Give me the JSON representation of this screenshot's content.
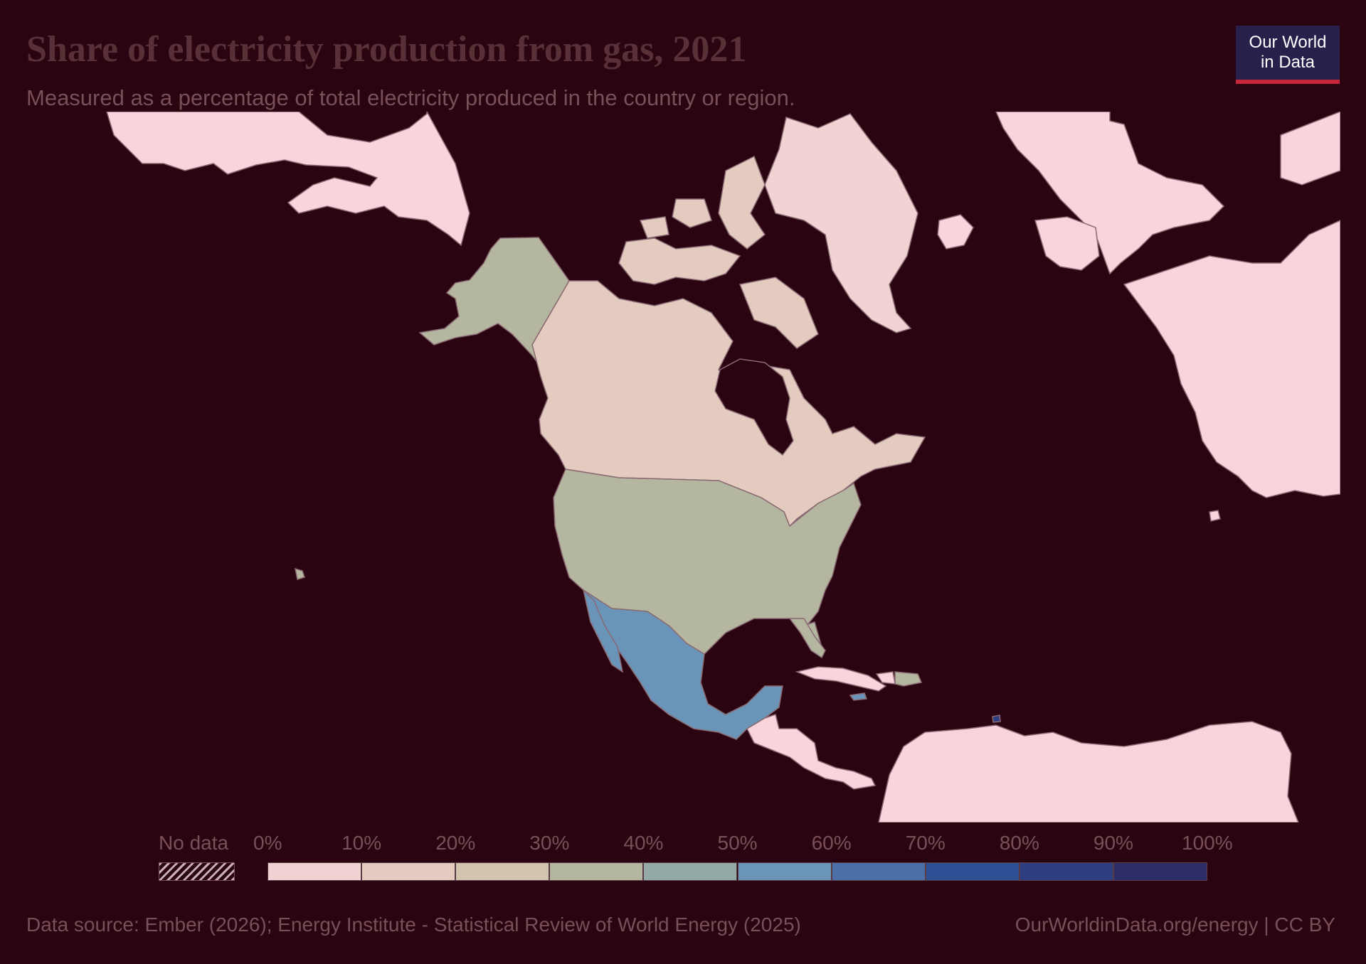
{
  "title": "Share of electricity production from gas, 2021",
  "subtitle": "Measured as a percentage of total electricity produced in the country or region.",
  "logo": {
    "line1": "Our World",
    "line2": "in Data"
  },
  "legend": {
    "no_data_label": "No data",
    "ticks": [
      "0%",
      "10%",
      "20%",
      "30%",
      "40%",
      "50%",
      "60%",
      "70%",
      "80%",
      "90%",
      "100%"
    ],
    "bin_colors": [
      "#f2d3d3",
      "#e4cbc0",
      "#d2c4af",
      "#b4b6a0",
      "#94aaa6",
      "#6a95b8",
      "#4c6fa8",
      "#2e5094",
      "#2d3f80",
      "#2d2d6a"
    ]
  },
  "map": {
    "land_no_data_color": "#fad4dc",
    "border_color": "#8a6a72",
    "regions": [
      {
        "name": "Alaska (United States)",
        "bin": 3
      },
      {
        "name": "Canada",
        "bin": 1
      },
      {
        "name": "Greenland",
        "bin": 0
      },
      {
        "name": "United States",
        "bin": 3
      },
      {
        "name": "Mexico",
        "bin": 5
      },
      {
        "name": "Dominican Republic",
        "bin": 3
      },
      {
        "name": "Jamaica",
        "bin": 5
      },
      {
        "name": "Trinidad and Tobago",
        "bin": 8
      }
    ]
  },
  "footer": {
    "source": "Data source: Ember (2026); Energy Institute - Statistical Review of World Energy (2025)",
    "credit": "OurWorldinData.org/energy | CC BY"
  }
}
